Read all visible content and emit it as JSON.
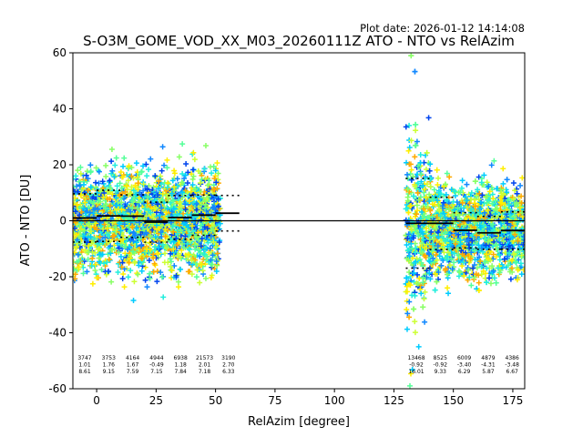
{
  "chart_data": {
    "type": "scatter",
    "plot_date": "Plot date: 2026-01-12 14:14:08",
    "title": "S-O3M_GOME_VOD_XX_M03_20260111Z ATO - NTO vs RelAzim",
    "xlabel": "RelAzim [degree]",
    "ylabel": "ATO - NTO [DU]",
    "xlim": [
      -10,
      180
    ],
    "ylim": [
      -60,
      60
    ],
    "xticks": [
      0,
      25,
      50,
      75,
      100,
      125,
      150,
      175
    ],
    "yticks": [
      -60,
      -40,
      -20,
      0,
      20,
      40,
      60
    ],
    "grid": false,
    "zero_line": 0,
    "point_cloud": {
      "marker": "+",
      "colors": [
        "#0044ee",
        "#1188ff",
        "#00ccff",
        "#22eedd",
        "#55ff99",
        "#88ff66",
        "#ccff33",
        "#ffee00",
        "#ffaa00"
      ],
      "segments": [
        {
          "x": [
            -10,
            52
          ],
          "center": 0,
          "spread_hi": 26,
          "spread_lo": -22
        },
        {
          "x": [
            130,
            180
          ],
          "center": -3,
          "spread_hi": 30,
          "spread_lo": -30
        }
      ]
    },
    "bins": [
      {
        "x0": -10,
        "x1": 0,
        "mean": 1.0,
        "std": 8.6
      },
      {
        "x0": 0,
        "x1": 10,
        "mean": 1.76,
        "std": 9.15
      },
      {
        "x0": 10,
        "x1": 20,
        "mean": 1.67,
        "std": 7.59
      },
      {
        "x0": 20,
        "x1": 30,
        "mean": -0.49,
        "std": 7.15
      },
      {
        "x0": 30,
        "x1": 40,
        "mean": 1.18,
        "std": 7.84
      },
      {
        "x0": 40,
        "x1": 50,
        "mean": 2.01,
        "std": 7.18
      },
      {
        "x0": 50,
        "x1": 60,
        "mean": 2.7,
        "std": 6.33
      },
      {
        "x0": 130,
        "x1": 140,
        "mean": -0.92,
        "std": 16.01
      },
      {
        "x0": 140,
        "x1": 150,
        "mean": -0.92,
        "std": 9.33
      },
      {
        "x0": 150,
        "x1": 160,
        "mean": -3.4,
        "std": 6.29
      },
      {
        "x0": 160,
        "x1": 170,
        "mean": -4.31,
        "std": 5.87
      },
      {
        "x0": 170,
        "x1": 180,
        "mean": -3.48,
        "std": 6.67
      }
    ],
    "bin_stats_left": [
      [
        "3747",
        "1.01",
        "8.61"
      ],
      [
        "3753",
        "1.76",
        "9.15"
      ],
      [
        "4164",
        "1.67",
        "7.59"
      ],
      [
        "4944",
        "-0.49",
        "7.15"
      ],
      [
        "6938",
        "1.18",
        "7.84"
      ],
      [
        "21573",
        "2.01",
        "7.18"
      ],
      [
        "3190",
        "2.70",
        "6.33"
      ]
    ],
    "bin_stats_right": [
      [
        "13468",
        "-0.92",
        "16.01"
      ],
      [
        "8525",
        "-0.92",
        "9.33"
      ],
      [
        "6009",
        "-3.40",
        "6.29"
      ],
      [
        "4879",
        "-4.31",
        "5.87"
      ],
      [
        "4386",
        "-3.48",
        "6.67"
      ]
    ]
  }
}
